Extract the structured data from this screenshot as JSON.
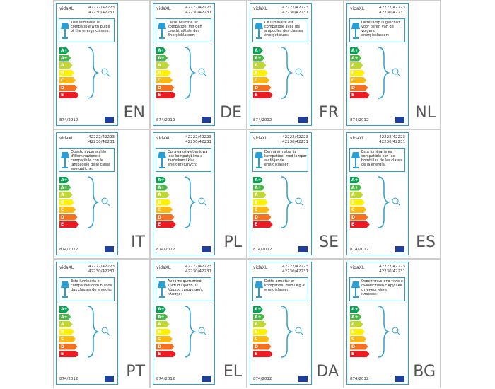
{
  "brand": "vidaXL",
  "codes": [
    "42222/42223",
    "42230/42231"
  ],
  "regulation": "874/2012",
  "classes": [
    "A++",
    "A+",
    "A",
    "B",
    "C",
    "D",
    "E"
  ],
  "labels": [
    {
      "lang": "EN",
      "text": "This luminaire is compatible with bulbs of the energy classes:"
    },
    {
      "lang": "DE",
      "text": "Diese Leuchte ist kompatibel mit den Leuchtmitteln der Energieklassen:"
    },
    {
      "lang": "FR",
      "text": "Ce luminaire est compatible avec les ampoules des classes énergétiques:"
    },
    {
      "lang": "NL",
      "text": "Deze lamp is geschikt voor peren van de volgend energieklassen:"
    },
    {
      "lang": "IT",
      "text": "Questo apparecchio d'illuminazione è compatibile con le lampadine delle classi energetiche:"
    },
    {
      "lang": "PL",
      "text": "Oprawa oświetleniowa jest kompatybilna z żarówkami klas energetycznych:"
    },
    {
      "lang": "SE",
      "text": "Denna armatur är kompatibel med lampor av följande energiklasser:"
    },
    {
      "lang": "ES",
      "text": "Esta luminaria es compatible con las bombillas de las clases de la energía:"
    },
    {
      "lang": "PT",
      "text": "Esta luminária é compatível com bulbos das classes de energia:"
    },
    {
      "lang": "EL",
      "text": "Αυτό το φωτιστικό είναι συμβατό με λάμπες ενεργειακής κλάσης:"
    },
    {
      "lang": "DA",
      "text": "Dette armatur er kompatibel med læg af energiklasser:"
    },
    {
      "lang": "BG",
      "text": "Осветителното тяло е съвместимо с крушки от енергийни класове:"
    }
  ]
}
